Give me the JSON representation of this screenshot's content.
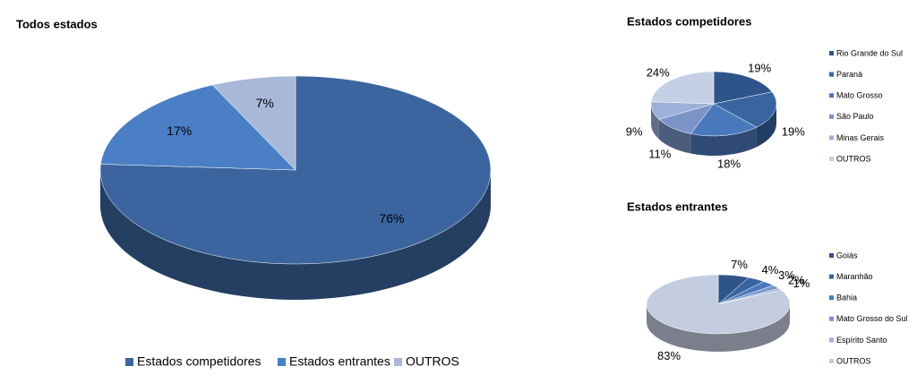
{
  "chart_data": [
    {
      "type": "pie",
      "title": "Todos estados",
      "categories": [
        "Estados competidores",
        "Estados entrantes",
        "OUTROS"
      ],
      "values": [
        76,
        17,
        7
      ],
      "value_labels": [
        "76%",
        "17%",
        "7%"
      ],
      "colors": [
        "#3c659f",
        "#4a7fc5",
        "#a8b8d9"
      ],
      "legend": "bottom"
    },
    {
      "type": "pie",
      "title": "Estados competidores",
      "categories": [
        "Rio Grande do Sul",
        "Paraná",
        "Mato Grosso",
        "São Paulo",
        "Minas Gerais",
        "OUTROS"
      ],
      "values": [
        19,
        19,
        18,
        11,
        9,
        24
      ],
      "value_labels": [
        "19%",
        "19%",
        "18%",
        "11%",
        "9%",
        "24%"
      ],
      "colors": [
        "#2f5489",
        "#3864a0",
        "#4a78bd",
        "#7b94c8",
        "#9fb0d8",
        "#c5cfe6"
      ],
      "legend": "right"
    },
    {
      "type": "pie",
      "title": "Estados entrantes",
      "categories": [
        "Goiás",
        "Maranhão",
        "Bahia",
        "Mato Grosso do Sul",
        "Espírito Santo",
        "OUTROS"
      ],
      "values": [
        7,
        4,
        3,
        2,
        1,
        83
      ],
      "value_labels": [
        "7%",
        "4%",
        "3%",
        "2%",
        "1%",
        "83%"
      ],
      "colors": [
        "#2f5489",
        "#3864a0",
        "#4a78bd",
        "#7b94c8",
        "#9fb0d8",
        "#c4cde0"
      ],
      "legend": "right"
    }
  ]
}
